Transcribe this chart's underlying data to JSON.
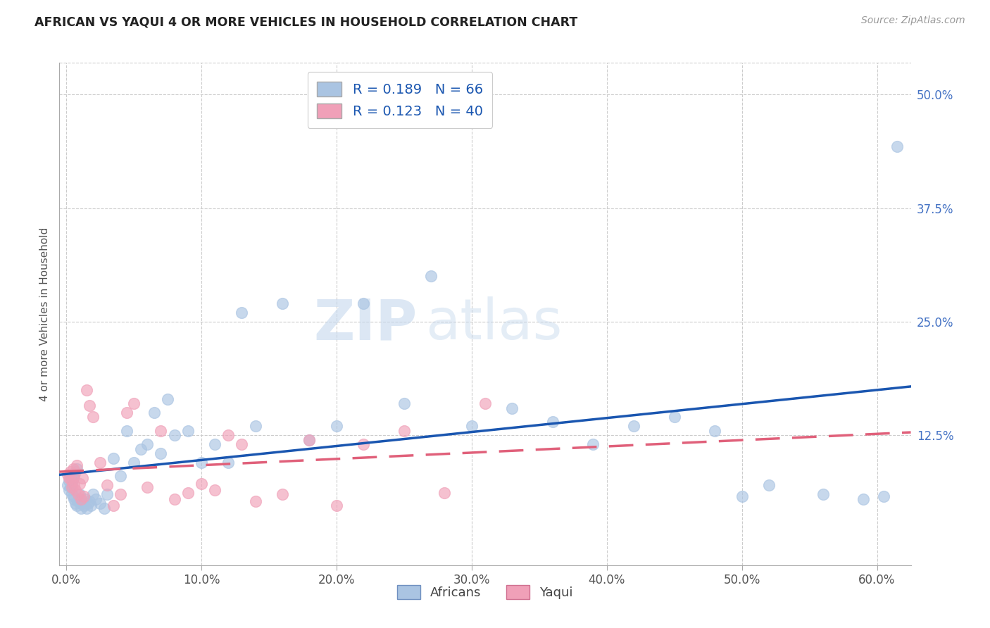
{
  "title": "AFRICAN VS YAQUI 4 OR MORE VEHICLES IN HOUSEHOLD CORRELATION CHART",
  "source": "Source: ZipAtlas.com",
  "ylabel": "4 or more Vehicles in Household",
  "xlabel_ticks": [
    "0.0%",
    "10.0%",
    "20.0%",
    "30.0%",
    "40.0%",
    "50.0%",
    "60.0%"
  ],
  "ylabel_ticks_right": [
    "12.5%",
    "25.0%",
    "37.5%",
    "50.0%"
  ],
  "ylabel_ticks_right_vals": [
    0.125,
    0.25,
    0.375,
    0.5
  ],
  "xmin": -0.005,
  "xmax": 0.625,
  "ymin": -0.018,
  "ymax": 0.535,
  "africans_R": 0.189,
  "africans_N": 66,
  "yaqui_R": 0.123,
  "yaqui_N": 40,
  "africans_color": "#aac4e2",
  "yaqui_color": "#f0a0b8",
  "africans_line_color": "#1a56b0",
  "yaqui_line_color": "#e0607a",
  "watermark_zip": "ZIP",
  "watermark_atlas": "atlas",
  "legend_label_1": "Africans",
  "legend_label_2": "Yaqui",
  "africans_x": [
    0.001,
    0.002,
    0.002,
    0.003,
    0.003,
    0.004,
    0.004,
    0.005,
    0.005,
    0.006,
    0.006,
    0.007,
    0.007,
    0.008,
    0.008,
    0.009,
    0.01,
    0.01,
    0.011,
    0.012,
    0.013,
    0.014,
    0.015,
    0.016,
    0.017,
    0.018,
    0.02,
    0.022,
    0.025,
    0.028,
    0.03,
    0.035,
    0.04,
    0.045,
    0.05,
    0.055,
    0.06,
    0.065,
    0.07,
    0.075,
    0.08,
    0.09,
    0.1,
    0.11,
    0.12,
    0.13,
    0.14,
    0.16,
    0.18,
    0.2,
    0.22,
    0.25,
    0.27,
    0.3,
    0.33,
    0.36,
    0.39,
    0.42,
    0.45,
    0.48,
    0.5,
    0.52,
    0.56,
    0.59,
    0.605,
    0.615
  ],
  "africans_y": [
    0.07,
    0.075,
    0.065,
    0.08,
    0.068,
    0.072,
    0.06,
    0.078,
    0.058,
    0.082,
    0.055,
    0.085,
    0.05,
    0.088,
    0.048,
    0.052,
    0.055,
    0.06,
    0.045,
    0.05,
    0.048,
    0.055,
    0.045,
    0.05,
    0.052,
    0.048,
    0.06,
    0.055,
    0.05,
    0.045,
    0.06,
    0.1,
    0.08,
    0.13,
    0.095,
    0.11,
    0.115,
    0.15,
    0.105,
    0.165,
    0.125,
    0.13,
    0.095,
    0.115,
    0.095,
    0.26,
    0.135,
    0.27,
    0.12,
    0.135,
    0.27,
    0.16,
    0.3,
    0.135,
    0.155,
    0.14,
    0.115,
    0.135,
    0.145,
    0.13,
    0.058,
    0.07,
    0.06,
    0.055,
    0.058,
    0.443
  ],
  "yaqui_x": [
    0.001,
    0.002,
    0.003,
    0.004,
    0.004,
    0.005,
    0.006,
    0.006,
    0.007,
    0.008,
    0.009,
    0.01,
    0.011,
    0.012,
    0.013,
    0.015,
    0.017,
    0.02,
    0.025,
    0.03,
    0.035,
    0.04,
    0.045,
    0.05,
    0.06,
    0.07,
    0.08,
    0.09,
    0.1,
    0.11,
    0.12,
    0.13,
    0.14,
    0.16,
    0.18,
    0.2,
    0.22,
    0.25,
    0.28,
    0.31
  ],
  "yaqui_y": [
    0.082,
    0.078,
    0.085,
    0.075,
    0.068,
    0.088,
    0.07,
    0.08,
    0.065,
    0.092,
    0.06,
    0.072,
    0.055,
    0.078,
    0.058,
    0.175,
    0.158,
    0.145,
    0.095,
    0.07,
    0.048,
    0.06,
    0.15,
    0.16,
    0.068,
    0.13,
    0.055,
    0.062,
    0.072,
    0.065,
    0.125,
    0.115,
    0.052,
    0.06,
    0.12,
    0.048,
    0.115,
    0.13,
    0.062,
    0.16
  ]
}
